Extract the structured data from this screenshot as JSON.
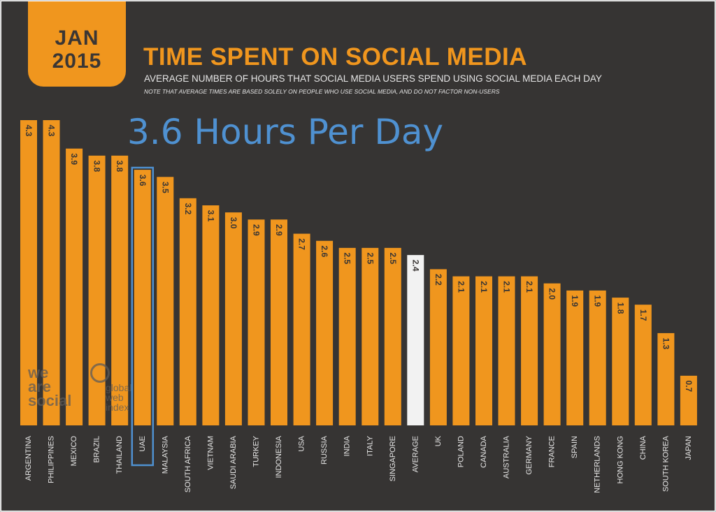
{
  "header": {
    "date_month": "JAN",
    "date_year": "2015",
    "title": "TIME SPENT ON SOCIAL MEDIA",
    "subtitle": "AVERAGE NUMBER OF HOURS THAT SOCIAL MEDIA USERS SPEND USING SOCIAL MEDIA EACH DAY",
    "note": "NOTE THAT AVERAGE TIMES ARE BASED SOLELY ON PEOPLE WHO USE SOCIAL MEDIA, AND DO NOT FACTOR NON-USERS"
  },
  "callout": {
    "text": "3.6 Hours Per Day",
    "highlighted_category": "UAE",
    "color": "#4f91d1"
  },
  "logos": {
    "we_are_social": "we\nare\nsocial",
    "globalwebindex": "global\nweb\nindex"
  },
  "colors": {
    "background": "#363433",
    "bar": "#f0961e",
    "average_bar": "#f2f2f2",
    "value_label": "#3a3634",
    "category_label": "#e6e6e6",
    "highlight": "#4f91d1"
  },
  "chart_data": {
    "type": "bar",
    "title": "TIME SPENT ON SOCIAL MEDIA",
    "subtitle": "AVERAGE NUMBER OF HOURS THAT SOCIAL MEDIA USERS SPEND USING SOCIAL MEDIA EACH DAY",
    "categories": [
      "ARGENTINA",
      "PHILIPPINES",
      "MEXICO",
      "BRAZIL",
      "THAILAND",
      "UAE",
      "MALAYSIA",
      "SOUTH AFRICA",
      "VIETNAM",
      "SAUDI ARABIA",
      "TURKEY",
      "INDONESIA",
      "USA",
      "RUSSIA",
      "INDIA",
      "ITALY",
      "SINGAPORE",
      "AVERAGE",
      "UK",
      "POLAND",
      "CANADA",
      "AUSTRALIA",
      "GERMANY",
      "FRANCE",
      "SPAIN",
      "NETHERLANDS",
      "HONG KONG",
      "CHINA",
      "SOUTH KOREA",
      "JAPAN"
    ],
    "values": [
      4.3,
      4.3,
      3.9,
      3.8,
      3.8,
      3.6,
      3.5,
      3.2,
      3.1,
      3.0,
      2.9,
      2.9,
      2.7,
      2.6,
      2.5,
      2.5,
      2.5,
      2.4,
      2.2,
      2.1,
      2.1,
      2.1,
      2.1,
      2.0,
      1.9,
      1.9,
      1.8,
      1.7,
      1.3,
      0.7
    ],
    "value_labels": [
      "4.3",
      "4.3",
      "3.9",
      "3.8",
      "3.8",
      "3.6",
      "3.5",
      "3.2",
      "3.1",
      "3.0",
      "2.9",
      "2.9",
      "2.7",
      "2.6",
      "2.5",
      "2.5",
      "2.5",
      "2.4",
      "2.2",
      "2.1",
      "2.1",
      "2.1",
      "2.1",
      "2.0",
      "1.9",
      "1.9",
      "1.8",
      "1.7",
      "1.3",
      "0.7"
    ],
    "ylim": [
      0,
      4.3
    ],
    "grid": false,
    "legend": "none",
    "xlabel": "",
    "ylabel": ""
  }
}
